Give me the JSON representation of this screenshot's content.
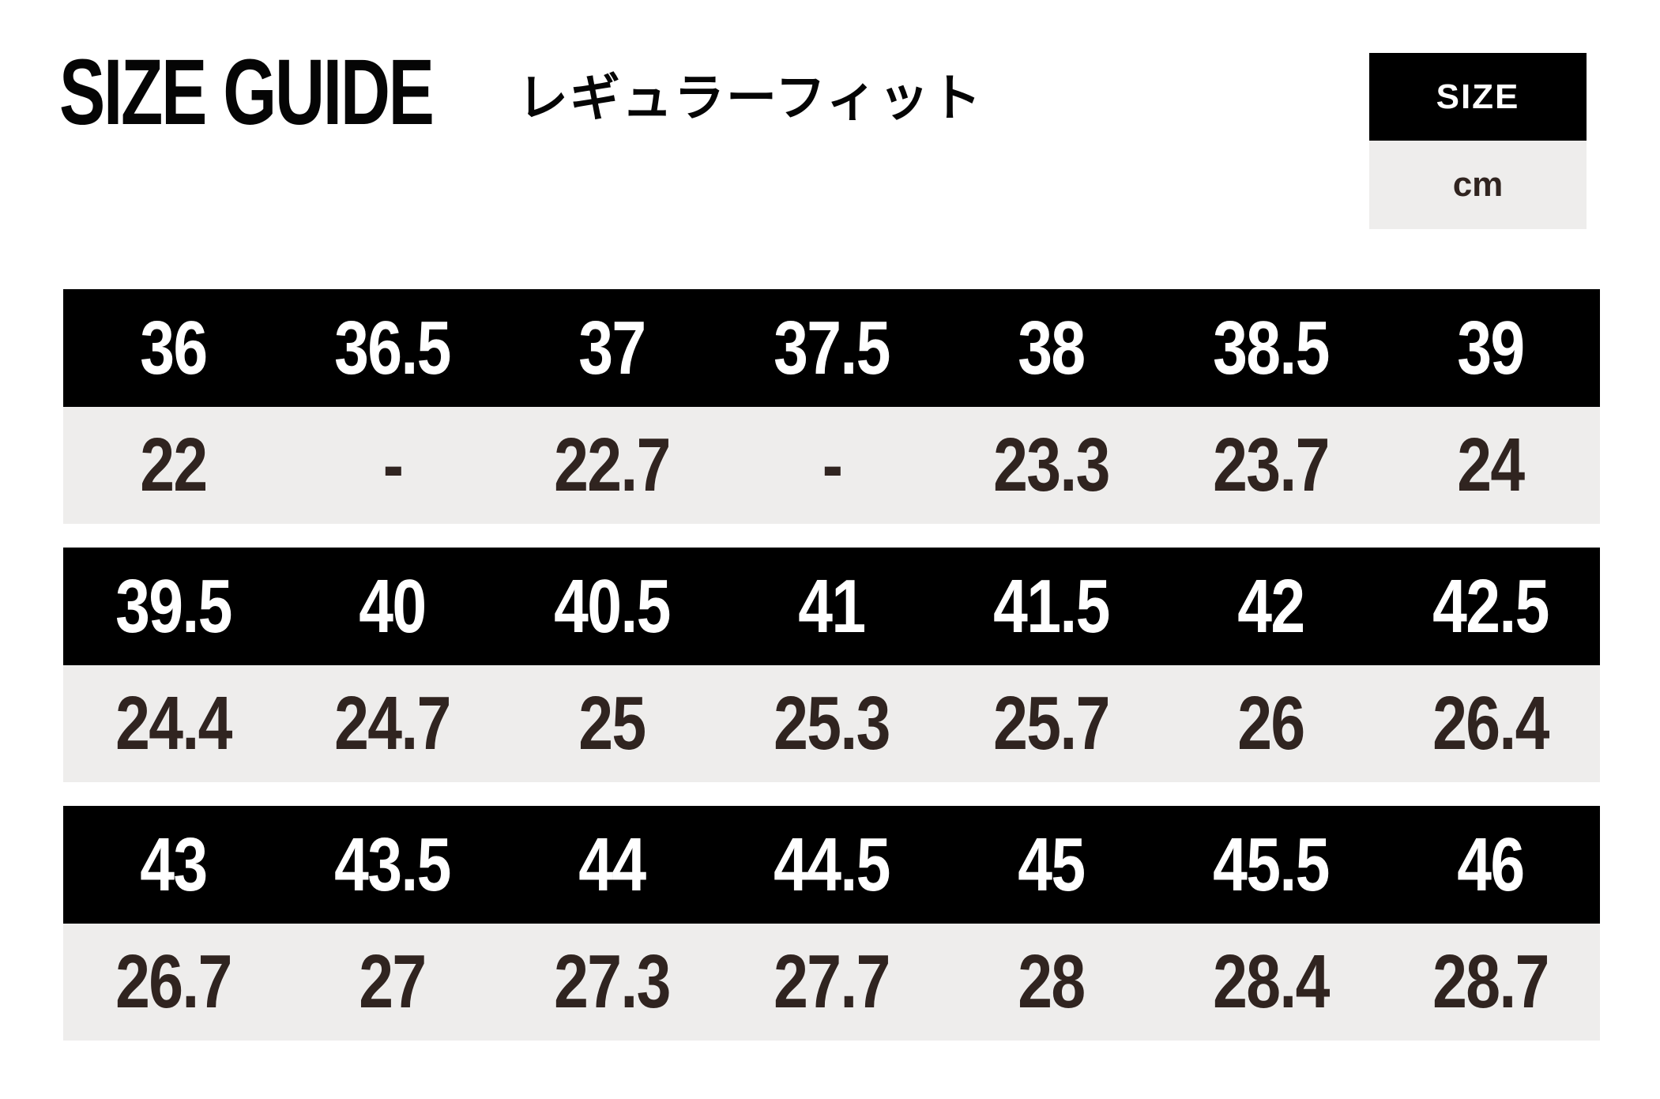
{
  "legend": {
    "size_label": "SIZE",
    "cm_label": "cm"
  },
  "colors": {
    "band_black": "#000000",
    "band_gray": "#eeedec",
    "size_text": "#ffffff",
    "cm_text": "#302420"
  },
  "chart_data": {
    "type": "table",
    "title": "SIZE GUIDE",
    "subtitle": "レギュラーフィット",
    "legend": {
      "header": "SIZE",
      "unit": "cm"
    },
    "row_groups": [
      {
        "sizes": [
          "36",
          "36.5",
          "37",
          "37.5",
          "38",
          "38.5",
          "39"
        ],
        "cm": [
          "22",
          "-",
          "22.7",
          "-",
          "23.3",
          "23.7",
          "24"
        ]
      },
      {
        "sizes": [
          "39.5",
          "40",
          "40.5",
          "41",
          "41.5",
          "42",
          "42.5"
        ],
        "cm": [
          "24.4",
          "24.7",
          "25",
          "25.3",
          "25.7",
          "26",
          "26.4"
        ]
      },
      {
        "sizes": [
          "43",
          "43.5",
          "44",
          "44.5",
          "45",
          "45.5",
          "46"
        ],
        "cm": [
          "26.7",
          "27",
          "27.3",
          "27.7",
          "28",
          "28.4",
          "28.7"
        ]
      }
    ]
  }
}
